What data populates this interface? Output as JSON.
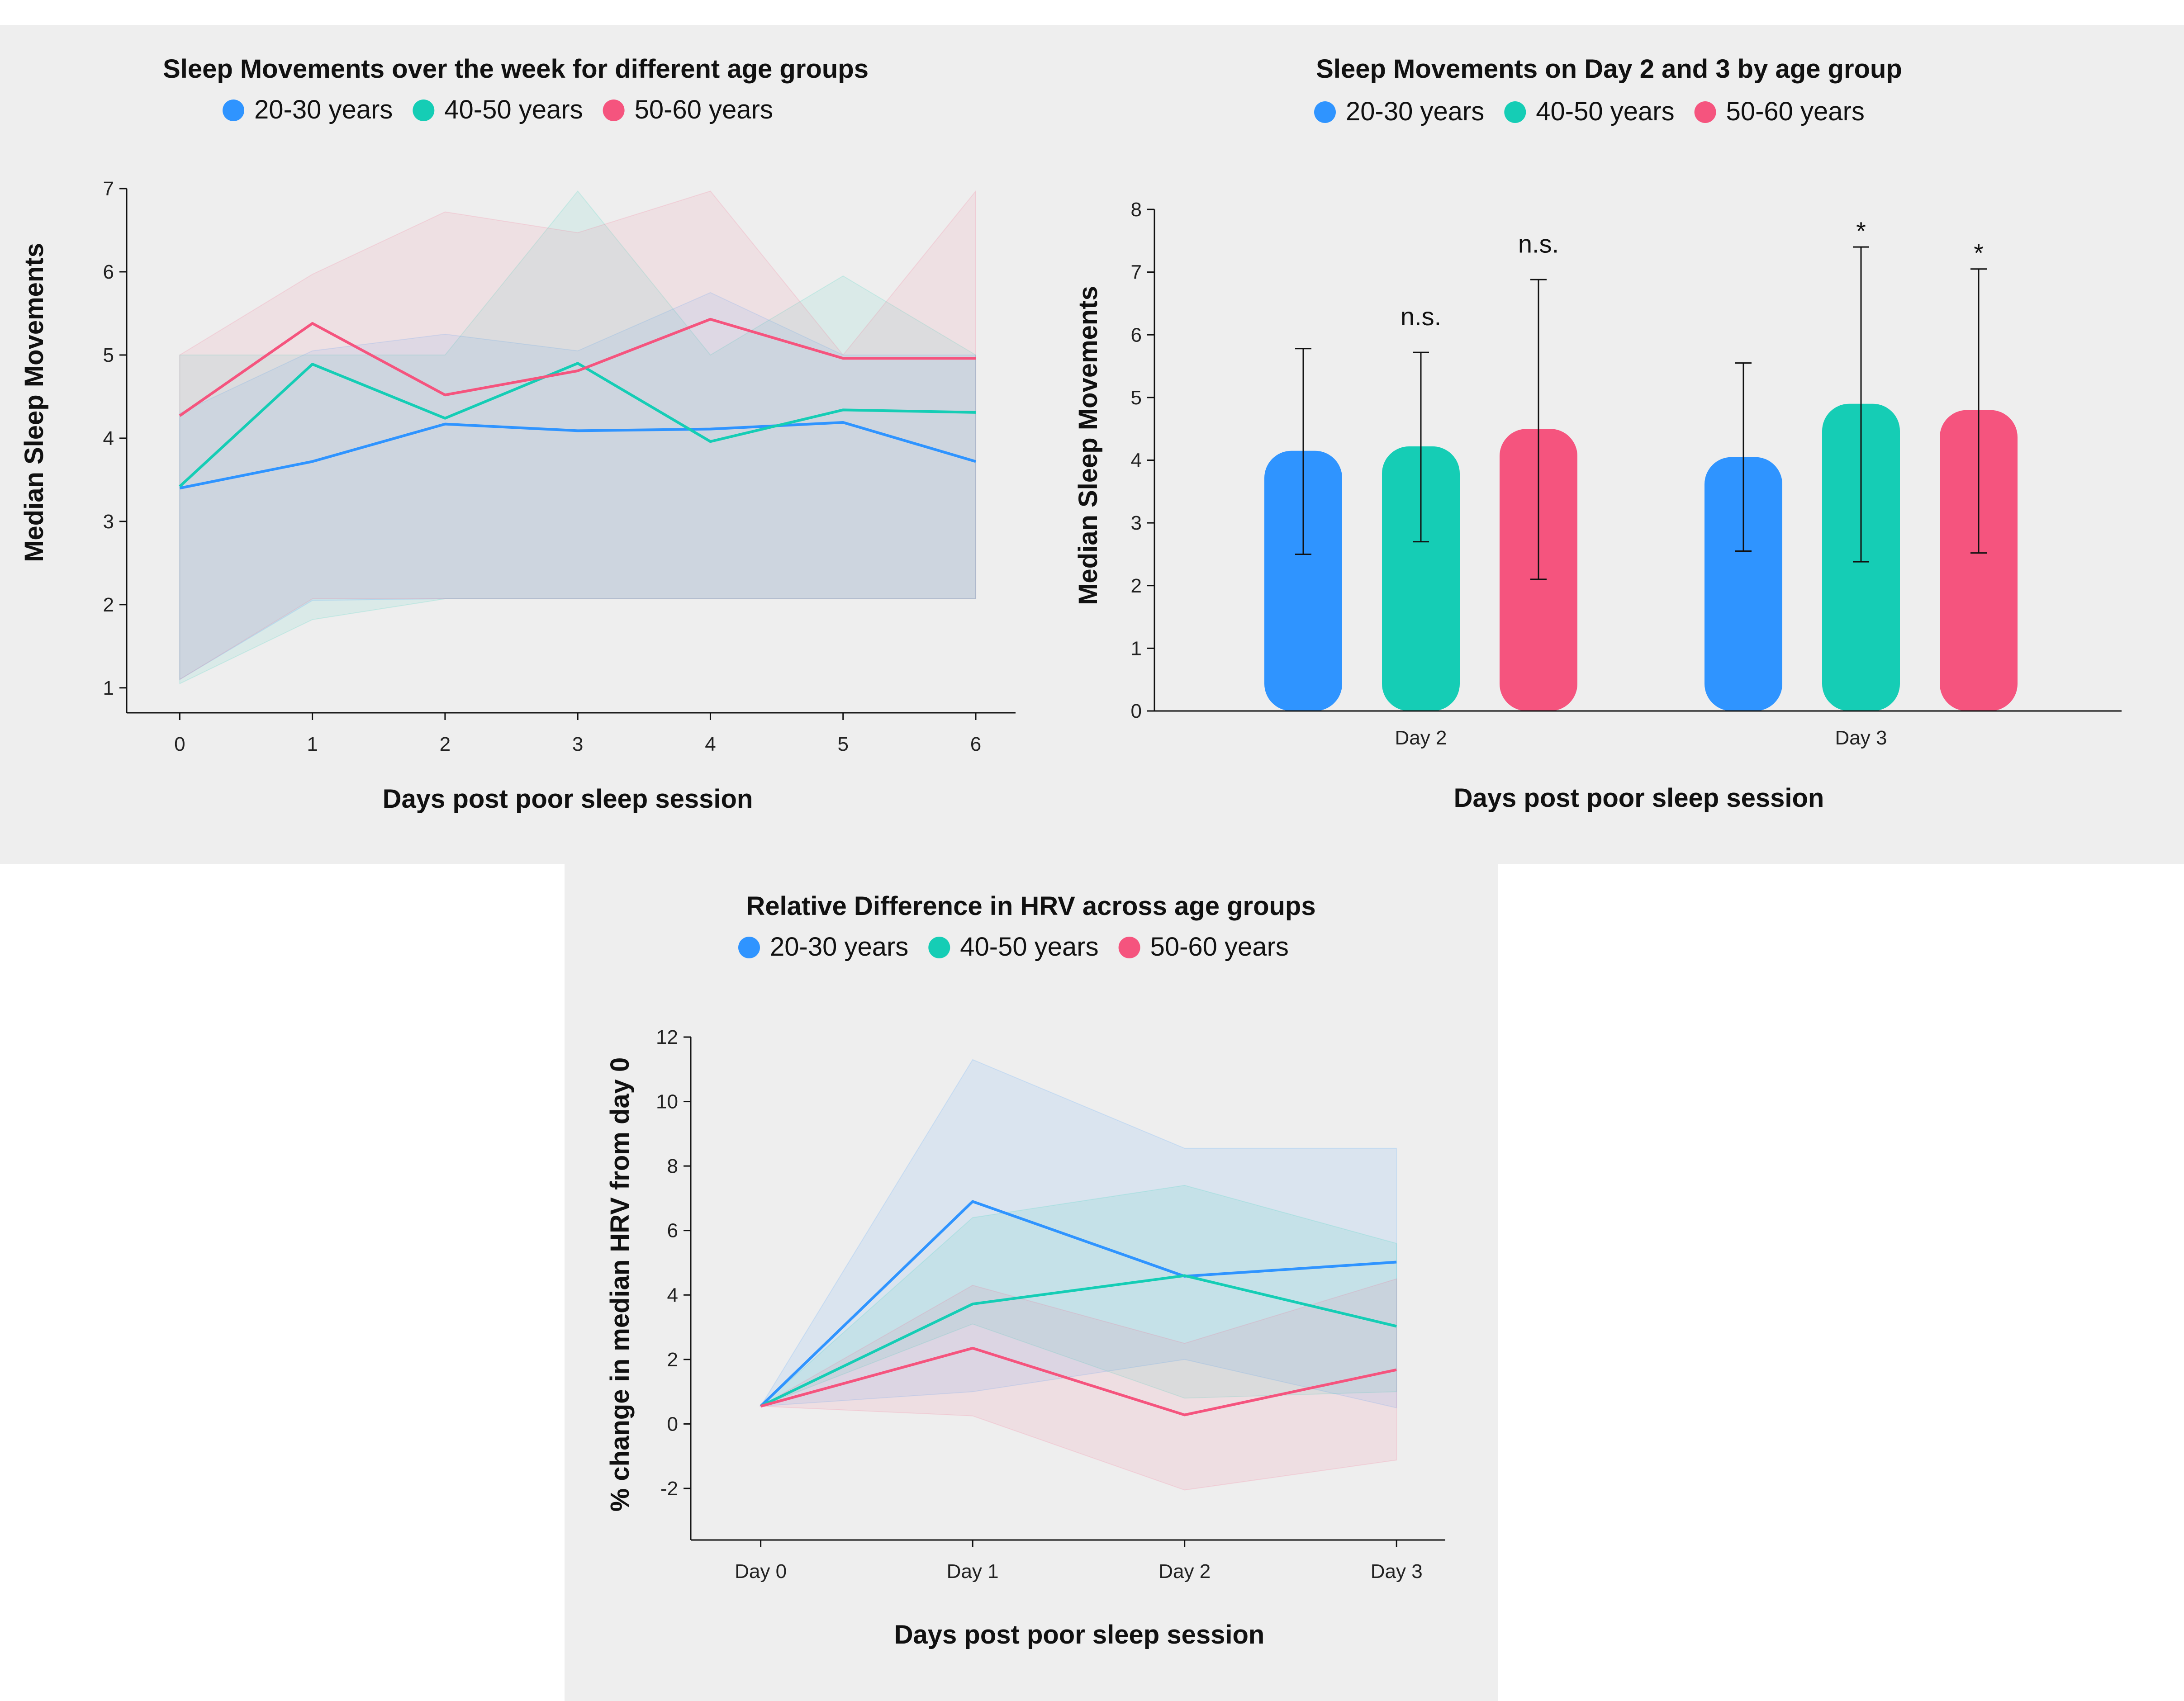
{
  "chart_data": [
    {
      "type": "line",
      "title": "Sleep Movements over the week for different age groups",
      "xlabel": "Days post poor sleep session",
      "ylabel": "Median Sleep Movements",
      "x": [
        0,
        1,
        2,
        3,
        4,
        5,
        6
      ],
      "xlim": [
        -0.4,
        6.3
      ],
      "ylim": [
        0.7,
        7
      ],
      "yticks": [
        1,
        2,
        3,
        4,
        5,
        6,
        7
      ],
      "legend": "top-center",
      "grid": false,
      "series": [
        {
          "name": "20-30 years",
          "color": "#2f94ff",
          "values": [
            3.4,
            3.72,
            4.17,
            4.09,
            4.11,
            4.19,
            3.72
          ],
          "band_low": [
            1.1,
            2.05,
            2.07,
            2.07,
            2.07,
            2.07,
            2.07
          ],
          "band_high": [
            4.3,
            5.05,
            5.25,
            5.05,
            5.75,
            5.0,
            5.0
          ]
        },
        {
          "name": "40-50 years",
          "color": "#15cdb5",
          "values": [
            3.42,
            4.89,
            4.24,
            4.9,
            3.96,
            4.34,
            4.31
          ],
          "band_low": [
            1.05,
            1.82,
            2.07,
            2.07,
            2.07,
            2.07,
            2.07
          ],
          "band_high": [
            5.0,
            5.0,
            5.0,
            6.97,
            5.0,
            5.95,
            5.0
          ]
        },
        {
          "name": "50-60 years",
          "color": "#f5547e",
          "values": [
            4.27,
            5.38,
            4.52,
            4.81,
            5.43,
            4.96,
            4.96
          ],
          "band_low": [
            1.1,
            2.07,
            2.07,
            2.07,
            2.07,
            2.07,
            2.07
          ],
          "band_high": [
            5.0,
            5.97,
            6.72,
            6.47,
            6.97,
            5.0,
            6.97
          ]
        }
      ]
    },
    {
      "type": "bar",
      "title": "Sleep Movements on Day 2 and 3 by age group",
      "xlabel": "Days post poor sleep session",
      "ylabel": "Median Sleep Movements",
      "categories": [
        "Day 2",
        "Day 3"
      ],
      "ylim": [
        0,
        8
      ],
      "yticks": [
        0,
        1,
        2,
        3,
        4,
        5,
        6,
        7,
        8
      ],
      "legend": "top-center",
      "grid": false,
      "series": [
        {
          "name": "20-30 years",
          "color": "#2f94ff",
          "values": [
            4.15,
            4.05
          ],
          "err_low": [
            2.5,
            2.55
          ],
          "err_high": [
            5.78,
            5.55
          ],
          "annotations": [
            "",
            ""
          ]
        },
        {
          "name": "40-50 years",
          "color": "#15cdb5",
          "values": [
            4.22,
            4.9
          ],
          "err_low": [
            2.7,
            2.38
          ],
          "err_high": [
            5.72,
            7.4
          ],
          "annotations": [
            "n.s.",
            "*"
          ]
        },
        {
          "name": "50-60 years",
          "color": "#f5547e",
          "values": [
            4.5,
            4.8
          ],
          "err_low": [
            2.1,
            2.52
          ],
          "err_high": [
            6.88,
            7.05
          ],
          "annotations": [
            "n.s.",
            "*"
          ]
        }
      ]
    },
    {
      "type": "line",
      "title": "Relative Difference in HRV across age groups",
      "xlabel": "Days post poor sleep session",
      "ylabel": "% change in median HRV from day 0",
      "categories": [
        "Day 0",
        "Day 1",
        "Day 2",
        "Day 3"
      ],
      "ylim": [
        -3.6,
        12
      ],
      "yticks": [
        -2,
        0,
        2,
        4,
        6,
        8,
        10,
        12
      ],
      "legend": "top-center",
      "grid": false,
      "series": [
        {
          "name": "20-30 years",
          "color": "#2f94ff",
          "values": [
            0.55,
            6.9,
            4.58,
            5.02
          ],
          "band_low": [
            0.55,
            1.0,
            2.0,
            0.5
          ],
          "band_high": [
            0.55,
            11.3,
            8.55,
            8.55
          ]
        },
        {
          "name": "40-50 years",
          "color": "#15cdb5",
          "values": [
            0.55,
            3.72,
            4.6,
            3.03
          ],
          "band_low": [
            0.55,
            3.1,
            0.8,
            1.0
          ],
          "band_high": [
            0.55,
            6.4,
            7.4,
            5.6
          ]
        },
        {
          "name": "50-60 years",
          "color": "#f5547e",
          "values": [
            0.55,
            2.35,
            0.28,
            1.68
          ],
          "band_low": [
            0.55,
            0.25,
            -2.05,
            -1.12
          ],
          "band_high": [
            0.55,
            4.3,
            2.5,
            4.5
          ]
        }
      ]
    }
  ]
}
